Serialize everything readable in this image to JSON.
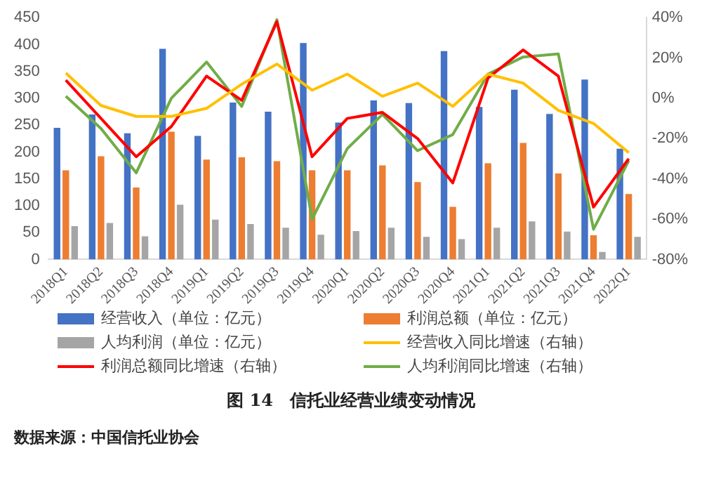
{
  "chart_data": {
    "type": "bar",
    "title": "图 14　信托业经营业绩变动情况",
    "categories": [
      "2018Q1",
      "2018Q2",
      "2018Q3",
      "2018Q4",
      "2019Q1",
      "2019Q2",
      "2019Q3",
      "2019Q4",
      "2020Q1",
      "2020Q2",
      "2020Q3",
      "2020Q4",
      "2021Q1",
      "2021Q2",
      "2021Q3",
      "2021Q4",
      "2022Q1"
    ],
    "series": [
      {
        "name": "经营收入（单位：亿元）",
        "color": "#4472c4",
        "values": [
          245,
          270,
          235,
          392,
          230,
          292,
          275,
          403,
          255,
          296,
          291,
          388,
          284,
          316,
          271,
          335,
          206
        ]
      },
      {
        "name": "利润总额（单位：亿元）",
        "color": "#ed7d31",
        "values": [
          166,
          192,
          134,
          238,
          186,
          190,
          183,
          166,
          166,
          175,
          144,
          98,
          179,
          217,
          160,
          45,
          122
        ]
      },
      {
        "name": "人均利润（单位：亿元）",
        "color": "#a5a5a5",
        "values": [
          62,
          68,
          43,
          102,
          74,
          66,
          59,
          46,
          53,
          59,
          42,
          38,
          59,
          71,
          52,
          14,
          42
        ]
      },
      {
        "name": "经营收入同比增速（右轴）",
        "type": "line",
        "axis": "y2",
        "color": "#ffc000",
        "values": [
          12.5,
          -3.6,
          -9,
          -9,
          -5,
          7,
          17,
          4,
          12,
          1,
          7.5,
          -4,
          12,
          7.5,
          -6,
          -12.5,
          -27
        ]
      },
      {
        "name": "利润总额同比增速（右轴）",
        "type": "line",
        "axis": "y2",
        "color": "#ff0000",
        "values": [
          9,
          -10,
          -29,
          -14,
          11,
          -1,
          38,
          -29,
          -10,
          -7,
          -20,
          -42,
          10,
          24,
          11,
          -54,
          -30
        ]
      },
      {
        "name": "人均利润同比增速（右轴）",
        "type": "line",
        "axis": "y2",
        "color": "#70ad47",
        "values": [
          1,
          -15,
          -37,
          0,
          18,
          -4,
          39,
          -60,
          -25,
          -8,
          -26,
          -18,
          12,
          20.5,
          22,
          -65,
          -31
        ]
      }
    ],
    "ylim": [
      0,
      450
    ],
    "yticks": [
      0,
      50,
      100,
      150,
      200,
      250,
      300,
      350,
      400,
      450
    ],
    "y2lim": [
      -80,
      40
    ],
    "y2ticks": [
      {
        "value": -80,
        "label": "-80%"
      },
      {
        "value": -60,
        "label": "-60%"
      },
      {
        "value": -40,
        "label": "-40%"
      },
      {
        "value": -20,
        "label": "-20%"
      },
      {
        "value": 0,
        "label": "0%"
      },
      {
        "value": 20,
        "label": "20%"
      },
      {
        "value": 40,
        "label": "40%"
      }
    ],
    "grid": false,
    "legend": "bottom",
    "marker": "none",
    "annotations": [
      "数据来源：中国信托业协会"
    ]
  }
}
